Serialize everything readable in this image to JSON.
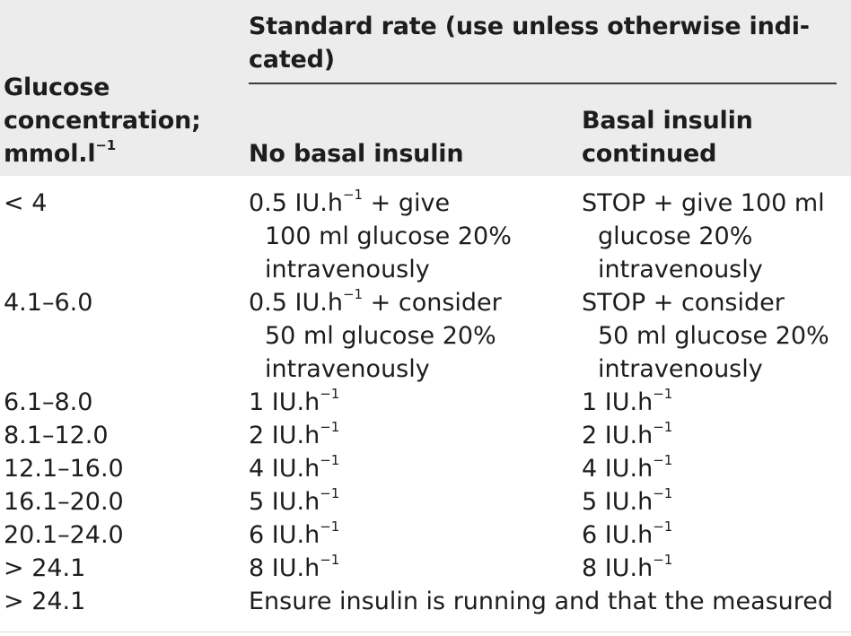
{
  "header": {
    "col1_lines": [
      "Glucose",
      "concentration;",
      "mmol.l"
    ],
    "col1_sup": "−1",
    "span_lines": [
      "Standard rate (use unless otherwise indi-",
      "cated)"
    ],
    "col2": "No basal insulin",
    "col3_lines": [
      "Basal insulin",
      "continued"
    ]
  },
  "rows": [
    {
      "glucose": "< 4",
      "no_basal": {
        "first": "0.5 IU.h",
        "sup": "−1",
        "rest": " + give",
        "lines": [
          "100 ml glucose 20%",
          "intravenously"
        ]
      },
      "basal": {
        "first": "STOP + give 100 ml",
        "lines": [
          "glucose 20%",
          "intravenously"
        ]
      }
    },
    {
      "glucose": "4.1–6.0",
      "no_basal": {
        "first": "0.5 IU.h",
        "sup": "−1",
        "rest": " + consider",
        "lines": [
          "50 ml glucose 20%",
          "intravenously"
        ]
      },
      "basal": {
        "first": "STOP + consider",
        "lines": [
          "50 ml glucose 20%",
          "intravenously"
        ]
      }
    },
    {
      "glucose": "6.1–8.0",
      "no_basal": "1 IU.h",
      "basal": "1 IU.h",
      "sup": "−1"
    },
    {
      "glucose": "8.1–12.0",
      "no_basal": "2 IU.h",
      "basal": "2 IU.h",
      "sup": "−1"
    },
    {
      "glucose": "12.1–16.0",
      "no_basal": "4 IU.h",
      "basal": "4 IU.h",
      "sup": "−1"
    },
    {
      "glucose": "16.1–20.0",
      "no_basal": "5 IU.h",
      "basal": "5 IU.h",
      "sup": "−1"
    },
    {
      "glucose": "20.1–24.0",
      "no_basal": "6 IU.h",
      "basal": "6 IU.h",
      "sup": "−1"
    },
    {
      "glucose": "> 24.1",
      "no_basal": "8 IU.h",
      "basal": "8 IU.h",
      "sup": "−1"
    },
    {
      "glucose": "> 24.1",
      "note": "Ensure insulin is running and that the measured"
    }
  ]
}
